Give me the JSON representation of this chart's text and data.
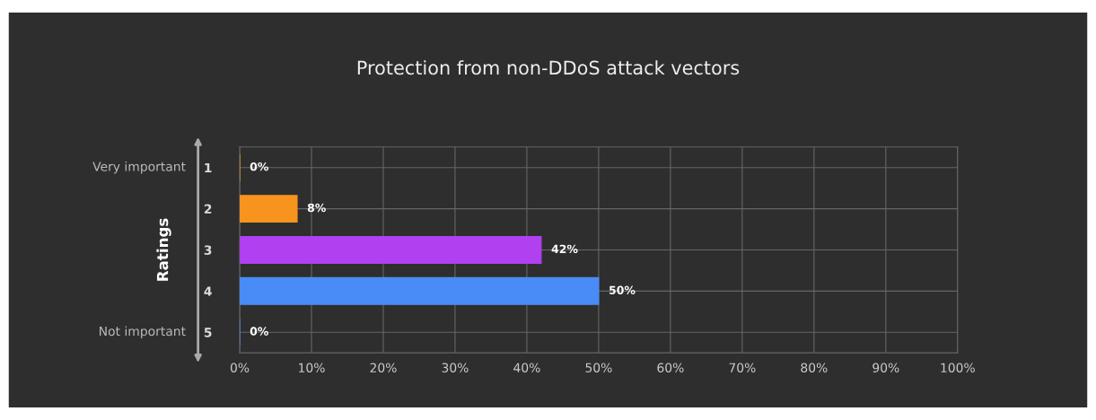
{
  "chart_data": {
    "type": "bar",
    "orientation": "horizontal",
    "title": "Protection from non-DDoS attack vectors",
    "ylabel": "Ratings",
    "categories": [
      "1",
      "2",
      "3",
      "4",
      "5"
    ],
    "values": [
      0,
      8,
      42,
      50,
      0
    ],
    "colors": [
      "#f7941d",
      "#f7941d",
      "#b040f0",
      "#4a8cf7",
      "#4a8cf7"
    ],
    "value_labels": [
      "0%",
      "8%",
      "42%",
      "50%",
      "0%"
    ],
    "xlim": [
      0,
      100
    ],
    "xticks": [
      {
        "value": 0,
        "label": "0%"
      },
      {
        "value": 10,
        "label": "10%"
      },
      {
        "value": 20,
        "label": "20%"
      },
      {
        "value": 30,
        "label": "30%"
      },
      {
        "value": 40,
        "label": "40%"
      },
      {
        "value": 50,
        "label": "50%"
      },
      {
        "value": 60,
        "label": "60%"
      },
      {
        "value": 70,
        "label": "70%"
      },
      {
        "value": 80,
        "label": "80%"
      },
      {
        "value": 90,
        "label": "90%"
      },
      {
        "value": 100,
        "label": "100%"
      }
    ],
    "grid": true,
    "annotations": [
      "Very important",
      "Not important"
    ]
  }
}
